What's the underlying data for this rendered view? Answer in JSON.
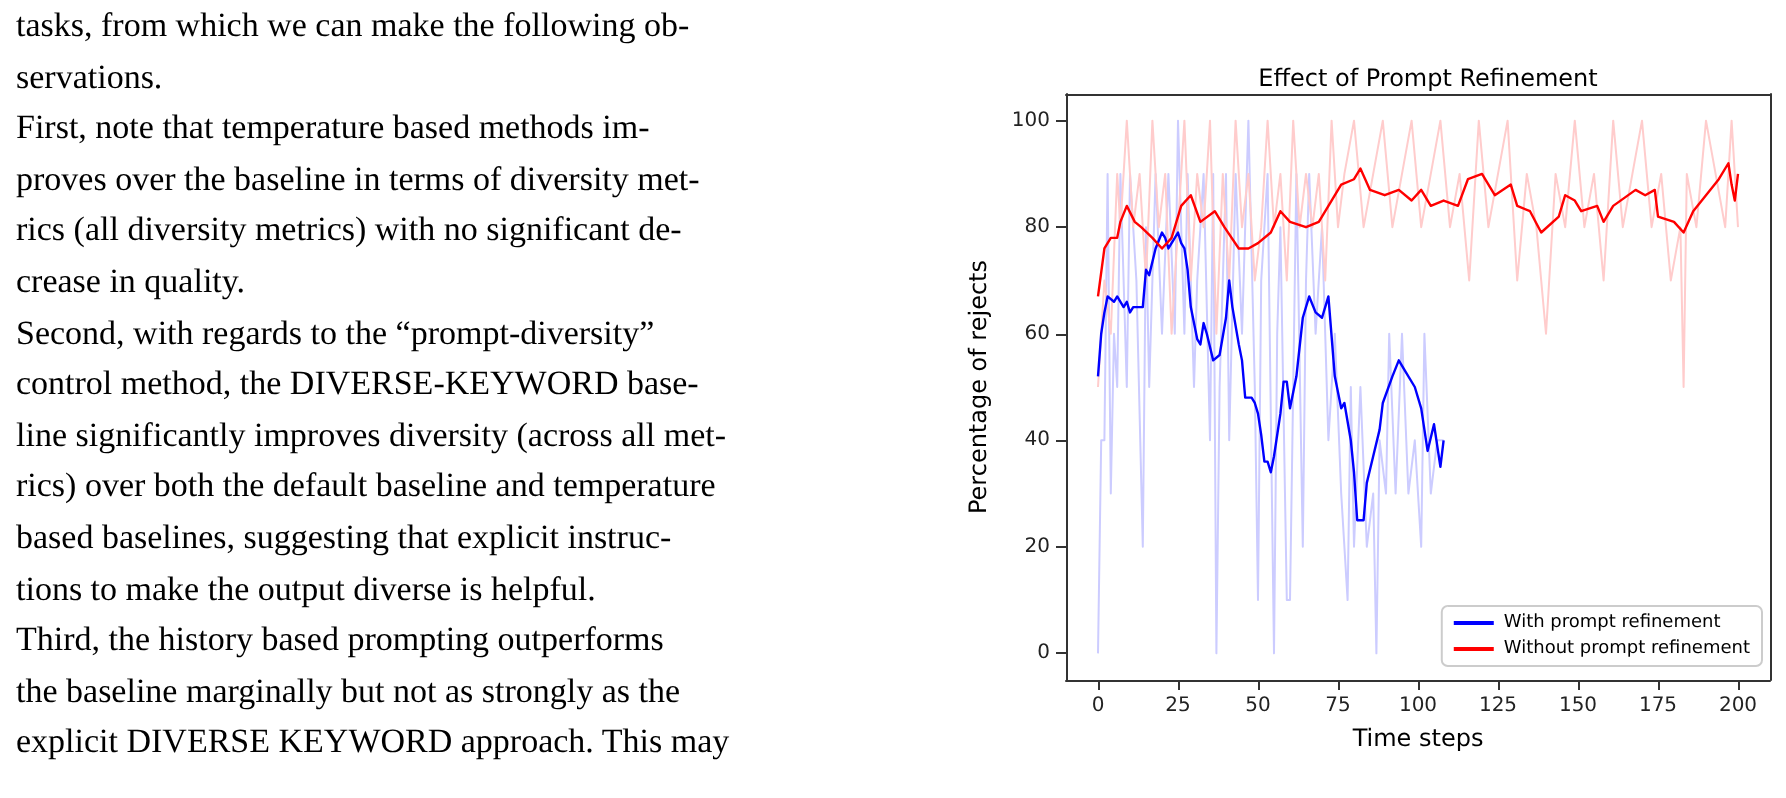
{
  "chart_data": {
    "type": "line",
    "title": "Effect of Prompt Refinement",
    "xlabel": "Time steps",
    "ylabel": "Percentage of rejects",
    "annotations": [
      "tasks, from which we can make the following ob-",
      "servations.",
      "First, note that temperature based methods im-",
      "proves over the baseline in terms of diversity met-",
      "rics (all diversity metrics) with no significant de-",
      "crease in quality.",
      "Second, with regards to the “prompt-diversity”",
      "control method, the DIVERSE-KEYWORD base-",
      "line significantly improves diversity (across all met-",
      "rics) over both the default baseline and temperature",
      "based baselines, suggesting that explicit instruc-",
      "tions to make the output diverse is helpful.",
      "Third, the history based prompting outperforms",
      "the baseline marginally but not as strongly as the",
      "explicit DIVERSE KEYWORD approach. This may"
    ],
    "xlim": [
      -10,
      210
    ],
    "xticks": [
      0,
      25,
      50,
      75,
      100,
      125,
      150,
      175,
      200
    ],
    "ylim": [
      -5,
      105
    ],
    "yticks": [
      0,
      20,
      40,
      60,
      80,
      100
    ],
    "grid": false,
    "legend": "bottom right",
    "marker": "none",
    "line_style": "solid",
    "series": [
      {
        "color": "#ccccff",
        "x": [
          0,
          1,
          2,
          3,
          4,
          5,
          6,
          7,
          9,
          10,
          12,
          14,
          15,
          16,
          18,
          20,
          22,
          24,
          25,
          27,
          28,
          30,
          31,
          33,
          35,
          36,
          37,
          38,
          40,
          41,
          43,
          45,
          47,
          49,
          50,
          51,
          53,
          55,
          56,
          57,
          59,
          60,
          62,
          64,
          65,
          66,
          68,
          70,
          72,
          74,
          76,
          78,
          79,
          80,
          82,
          84,
          86,
          87,
          88,
          90,
          91,
          93,
          95,
          97,
          99,
          101,
          102,
          104,
          106,
          108
        ],
        "values": [
          0,
          40,
          40,
          90,
          30,
          60,
          50,
          90,
          50,
          90,
          70,
          20,
          80,
          50,
          90,
          60,
          90,
          60,
          100,
          60,
          90,
          50,
          70,
          90,
          40,
          90,
          0,
          50,
          90,
          40,
          90,
          60,
          100,
          50,
          10,
          70,
          90,
          0,
          60,
          80,
          10,
          10,
          90,
          20,
          70,
          90,
          60,
          80,
          40,
          60,
          30,
          10,
          50,
          20,
          50,
          20,
          30,
          0,
          40,
          30,
          60,
          30,
          60,
          30,
          40,
          20,
          60,
          30,
          40,
          40
        ]
      },
      {
        "color": "#ffcccc",
        "x": [
          0,
          2,
          4,
          6,
          7,
          9,
          11,
          13,
          15,
          17,
          19,
          21,
          23,
          25,
          27,
          29,
          31,
          33,
          35,
          37,
          39,
          41,
          43,
          45,
          47,
          49,
          51,
          53,
          55,
          57,
          59,
          61,
          63,
          65,
          67,
          69,
          71,
          73,
          75,
          77,
          80,
          83,
          86,
          89,
          92,
          95,
          98,
          101,
          104,
          107,
          110,
          113,
          116,
          119,
          122,
          125,
          128,
          131,
          134,
          137,
          140,
          143,
          146,
          149,
          152,
          155,
          158,
          161,
          164,
          167,
          170,
          173,
          176,
          179,
          182,
          183,
          184,
          187,
          190,
          193,
          196,
          198,
          200
        ],
        "values": [
          50,
          70,
          60,
          90,
          80,
          100,
          80,
          90,
          70,
          100,
          80,
          90,
          60,
          80,
          100,
          70,
          90,
          80,
          100,
          60,
          90,
          70,
          100,
          80,
          90,
          70,
          80,
          100,
          80,
          90,
          70,
          100,
          80,
          90,
          80,
          90,
          70,
          100,
          80,
          90,
          100,
          80,
          90,
          100,
          80,
          90,
          100,
          80,
          90,
          100,
          80,
          90,
          70,
          100,
          80,
          90,
          100,
          70,
          90,
          80,
          60,
          90,
          80,
          100,
          80,
          90,
          70,
          100,
          80,
          90,
          100,
          80,
          90,
          70,
          80,
          50,
          90,
          80,
          100,
          90,
          80,
          100,
          80
        ]
      },
      {
        "name": "With prompt refinement",
        "color": "#0000ff",
        "x": [
          0,
          1,
          2,
          3,
          5,
          6,
          8,
          9,
          10,
          11,
          14,
          15,
          16,
          18,
          20,
          21,
          22,
          24,
          25,
          26,
          27,
          28,
          29,
          31,
          32,
          33,
          34,
          36,
          38,
          40,
          41,
          42,
          44,
          45,
          46,
          48,
          49,
          50,
          51,
          52,
          53,
          54,
          55,
          57,
          58,
          59,
          60,
          62,
          64,
          66,
          68,
          70,
          71,
          72,
          74,
          76,
          77,
          79,
          80,
          81,
          83,
          84,
          86,
          88,
          89,
          92,
          94,
          96,
          99,
          101,
          103,
          105,
          107,
          108
        ],
        "values": [
          52,
          60,
          64,
          67,
          66,
          67,
          65,
          66,
          64,
          65,
          65,
          72,
          71,
          76,
          79,
          78,
          76,
          78,
          79,
          77,
          76,
          72,
          65,
          59,
          58,
          62,
          60,
          55,
          56,
          63,
          70,
          65,
          58,
          55,
          48,
          48,
          47,
          45,
          41,
          36,
          36,
          34,
          37,
          45,
          51,
          51,
          46,
          52,
          63,
          67,
          64,
          63,
          65,
          67,
          52,
          46,
          47,
          40,
          34,
          25,
          25,
          32,
          37,
          42,
          47,
          52,
          55,
          53,
          50,
          46,
          38,
          43,
          35,
          40
        ]
      },
      {
        "name": "Without prompt refinement",
        "color": "#ff0000",
        "x": [
          0,
          2,
          4,
          6,
          7,
          9,
          11.5,
          13.5,
          17,
          20,
          23,
          26,
          29,
          32,
          36.5,
          39.5,
          44,
          47,
          50,
          54,
          57,
          60,
          65,
          69,
          73,
          76,
          80,
          82,
          85,
          89.6,
          94,
          98,
          101,
          104,
          108,
          112.5,
          115.6,
          120,
          124,
          129,
          131,
          135,
          138.5,
          144,
          146,
          149,
          151,
          156,
          158,
          161,
          168,
          171,
          174,
          175,
          180,
          183,
          186,
          190,
          194,
          197,
          198,
          199,
          200
        ],
        "values": [
          67,
          76,
          78,
          78,
          81,
          84,
          81,
          80,
          78,
          76,
          78,
          84,
          86,
          81,
          83,
          80,
          76,
          76,
          77,
          79,
          83,
          81,
          80,
          81,
          85,
          88,
          89,
          91,
          87,
          86,
          87,
          85,
          87,
          84,
          85,
          84,
          89,
          90,
          86,
          88,
          84,
          83,
          79,
          82,
          86,
          85,
          83,
          84,
          81,
          84,
          87,
          86,
          87,
          82,
          81,
          79,
          83,
          86,
          89,
          92,
          88,
          85,
          90
        ]
      }
    ]
  }
}
